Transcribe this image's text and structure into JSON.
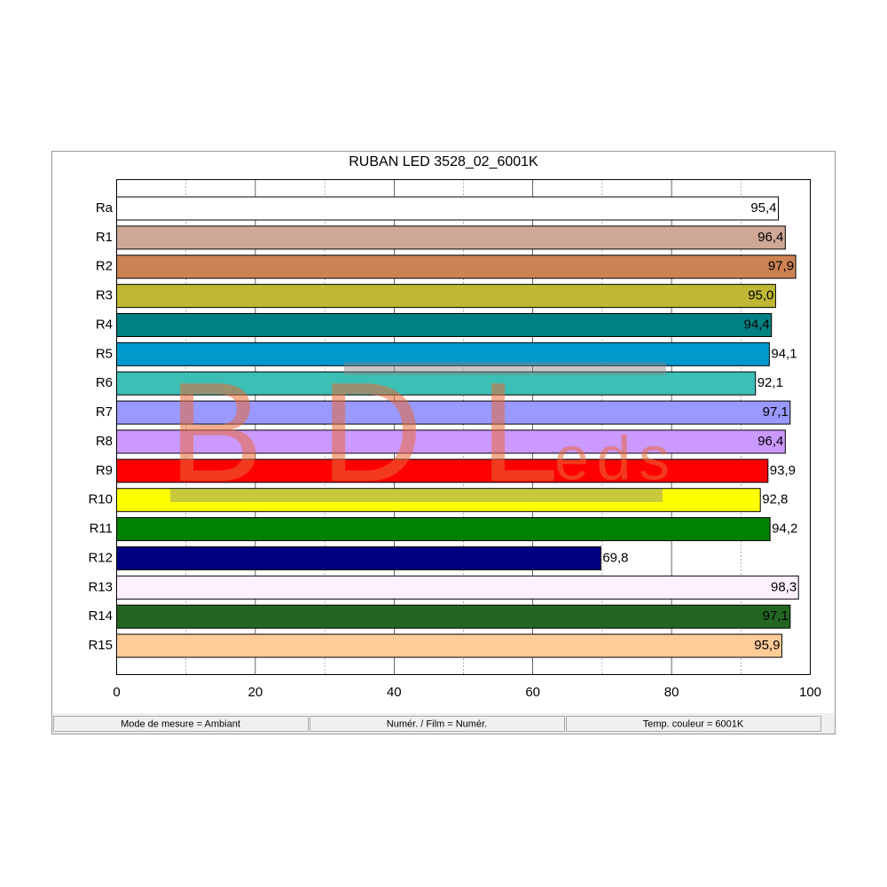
{
  "chart_data": {
    "type": "bar",
    "orientation": "horizontal",
    "title": "RUBAN LED 3528_02_6001K",
    "categories": [
      "Ra",
      "R1",
      "R2",
      "R3",
      "R4",
      "R5",
      "R6",
      "R7",
      "R8",
      "R9",
      "R10",
      "R11",
      "R12",
      "R13",
      "R14",
      "R15"
    ],
    "values": [
      95.4,
      96.4,
      97.9,
      95.0,
      94.4,
      94.1,
      92.1,
      97.1,
      96.4,
      93.9,
      92.8,
      94.2,
      69.8,
      98.3,
      97.1,
      95.9
    ],
    "value_labels": [
      "95,4",
      "96,4",
      "97,9",
      "95,0",
      "94,4",
      "94,1",
      "92,1",
      "97,1",
      "96,4",
      "93,9",
      "92,8",
      "94,2",
      "69,8",
      "98,3",
      "97,1",
      "95,9"
    ],
    "colors": [
      "#ffffff",
      "#cfa896",
      "#cc8252",
      "#c0b834",
      "#008080",
      "#0099cc",
      "#3cbfb4",
      "#9999ff",
      "#cc99ff",
      "#ff0000",
      "#ffff00",
      "#008000",
      "#000080",
      "#fff0ff",
      "#226622",
      "#ffcc99"
    ],
    "xlim": [
      0,
      100
    ],
    "xticks": [
      0,
      20,
      40,
      60,
      80,
      100
    ],
    "minor_xticks": [
      10,
      30,
      50,
      70,
      90
    ],
    "grid": true,
    "watermark": [
      "BDL",
      "eds"
    ],
    "status": [
      "Mode de mesure = Ambiant",
      "Numér. / Film = Numér.",
      "Temp. couleur = 6001K"
    ]
  }
}
